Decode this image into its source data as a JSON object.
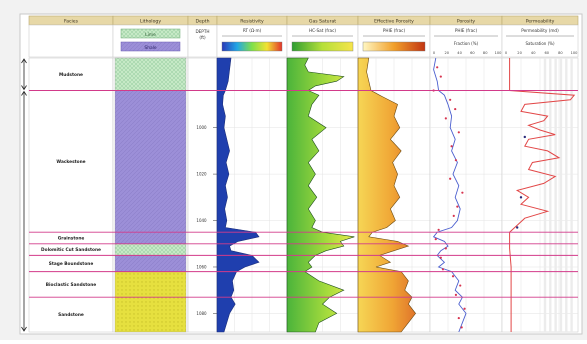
{
  "chart_data": {
    "type": "well-log",
    "columns": [
      {
        "id": "facies",
        "label": "Facies"
      },
      {
        "id": "lithology",
        "label": "Lithology"
      },
      {
        "id": "depth",
        "label": "Depth"
      },
      {
        "id": "resistivity",
        "label": "Resistivity"
      },
      {
        "id": "gas",
        "label": "Gas Saturat"
      },
      {
        "id": "effperm",
        "label": "Effective Porosity"
      },
      {
        "id": "porosity",
        "label": "Porosity"
      },
      {
        "id": "permeability",
        "label": "Permeability"
      }
    ],
    "lithology_legend": [
      "Lime",
      "Shale"
    ],
    "depth_header": [
      "DEPTH",
      "(ft)"
    ],
    "track_headers": {
      "resistivity": "RT (Ω·m)",
      "gas": "HC-Sat (frac)",
      "effperm": "PHIE (frac)",
      "porosity": {
        "title": "PHIE (frac)",
        "scale": "Fraction (%)",
        "ticks": [
          "0",
          "20",
          "40",
          "60",
          "80",
          "100"
        ]
      },
      "permeability": {
        "title": "Permeability (md)",
        "scale": "Saturation (%)",
        "ticks": [
          "0",
          "20",
          "40",
          "60",
          "80",
          "100"
        ]
      }
    },
    "depth_ticks": [
      {
        "depth": 1000,
        "label": "1000"
      },
      {
        "depth": 1020,
        "label": "1020"
      },
      {
        "depth": 1040,
        "label": "1040"
      },
      {
        "depth": 1060,
        "label": "1060"
      },
      {
        "depth": 1080,
        "label": "1080"
      }
    ],
    "depth_range": [
      970,
      1088
    ],
    "zones": [
      {
        "name": "Mudstone",
        "top": 970,
        "base": 984,
        "pattern": "green"
      },
      {
        "name": "Wackestone",
        "top": 984,
        "base": 1045,
        "pattern": "purple"
      },
      {
        "name": "Grainstone",
        "top": 1045,
        "base": 1050,
        "pattern": "purple"
      },
      {
        "name": "Dolomitic Cut Sandstone",
        "top": 1050,
        "base": 1055,
        "pattern": "green"
      },
      {
        "name": "Stage Boundstone",
        "top": 1055,
        "base": 1062,
        "pattern": "purple"
      },
      {
        "name": "Bioclastic Sandstone",
        "top": 1062,
        "base": 1073,
        "pattern": "yellow"
      },
      {
        "name": "Sandstone",
        "top": 1073,
        "base": 1088,
        "pattern": "yellow"
      }
    ],
    "curves": {
      "resistivity": [
        [
          970,
          0.2
        ],
        [
          975,
          0.18
        ],
        [
          980,
          0.16
        ],
        [
          984,
          0.12
        ],
        [
          986,
          0.09
        ],
        [
          990,
          0.08
        ],
        [
          995,
          0.12
        ],
        [
          1000,
          0.1
        ],
        [
          1005,
          0.14
        ],
        [
          1010,
          0.18
        ],
        [
          1015,
          0.13
        ],
        [
          1020,
          0.17
        ],
        [
          1025,
          0.12
        ],
        [
          1030,
          0.15
        ],
        [
          1035,
          0.11
        ],
        [
          1040,
          0.14
        ],
        [
          1043,
          0.12
        ],
        [
          1045,
          0.55
        ],
        [
          1047,
          0.6
        ],
        [
          1049,
          0.3
        ],
        [
          1051,
          0.18
        ],
        [
          1053,
          0.2
        ],
        [
          1055,
          0.5
        ],
        [
          1058,
          0.6
        ],
        [
          1060,
          0.4
        ],
        [
          1062,
          0.28
        ],
        [
          1066,
          0.22
        ],
        [
          1070,
          0.24
        ],
        [
          1073,
          0.2
        ],
        [
          1076,
          0.26
        ],
        [
          1080,
          0.18
        ],
        [
          1084,
          0.14
        ],
        [
          1088,
          0.1
        ]
      ],
      "gas": [
        [
          970,
          0.3
        ],
        [
          973,
          0.25
        ],
        [
          976,
          0.3
        ],
        [
          978,
          0.8
        ],
        [
          980,
          0.7
        ],
        [
          982,
          0.4
        ],
        [
          984,
          0.3
        ],
        [
          986,
          0.45
        ],
        [
          990,
          0.35
        ],
        [
          995,
          0.3
        ],
        [
          1000,
          0.55
        ],
        [
          1005,
          0.35
        ],
        [
          1010,
          0.45
        ],
        [
          1015,
          0.3
        ],
        [
          1020,
          0.4
        ],
        [
          1025,
          0.3
        ],
        [
          1030,
          0.42
        ],
        [
          1035,
          0.3
        ],
        [
          1040,
          0.4
        ],
        [
          1043,
          0.35
        ],
        [
          1045,
          0.5
        ],
        [
          1047,
          0.95
        ],
        [
          1049,
          0.75
        ],
        [
          1051,
          0.8
        ],
        [
          1053,
          0.55
        ],
        [
          1055,
          0.4
        ],
        [
          1058,
          0.3
        ],
        [
          1060,
          0.35
        ],
        [
          1062,
          0.25
        ],
        [
          1066,
          0.45
        ],
        [
          1070,
          0.8
        ],
        [
          1073,
          0.6
        ],
        [
          1076,
          0.5
        ],
        [
          1080,
          0.7
        ],
        [
          1084,
          0.45
        ],
        [
          1088,
          0.4
        ]
      ],
      "effperm": [
        [
          970,
          0.15
        ],
        [
          976,
          0.12
        ],
        [
          980,
          0.15
        ],
        [
          984,
          0.18
        ],
        [
          986,
          0.3
        ],
        [
          990,
          0.55
        ],
        [
          995,
          0.5
        ],
        [
          1000,
          0.58
        ],
        [
          1005,
          0.45
        ],
        [
          1010,
          0.6
        ],
        [
          1015,
          0.48
        ],
        [
          1020,
          0.55
        ],
        [
          1025,
          0.5
        ],
        [
          1030,
          0.58
        ],
        [
          1035,
          0.45
        ],
        [
          1040,
          0.52
        ],
        [
          1043,
          0.4
        ],
        [
          1045,
          0.2
        ],
        [
          1047,
          0.15
        ],
        [
          1049,
          0.55
        ],
        [
          1051,
          0.7
        ],
        [
          1053,
          0.5
        ],
        [
          1055,
          0.3
        ],
        [
          1058,
          0.45
        ],
        [
          1060,
          0.25
        ],
        [
          1062,
          0.6
        ],
        [
          1066,
          0.7
        ],
        [
          1070,
          0.65
        ],
        [
          1073,
          0.75
        ],
        [
          1076,
          0.7
        ],
        [
          1080,
          0.8
        ],
        [
          1084,
          0.7
        ],
        [
          1088,
          0.6
        ]
      ],
      "porosity_blue": [
        [
          970,
          0.08
        ],
        [
          975,
          0.05
        ],
        [
          980,
          0.1
        ],
        [
          984,
          0.12
        ],
        [
          986,
          0.2
        ],
        [
          990,
          0.25
        ],
        [
          995,
          0.3
        ],
        [
          1000,
          0.28
        ],
        [
          1005,
          0.35
        ],
        [
          1010,
          0.3
        ],
        [
          1015,
          0.38
        ],
        [
          1020,
          0.32
        ],
        [
          1025,
          0.4
        ],
        [
          1030,
          0.35
        ],
        [
          1035,
          0.42
        ],
        [
          1040,
          0.38
        ],
        [
          1043,
          0.3
        ],
        [
          1045,
          0.1
        ],
        [
          1047,
          0.05
        ],
        [
          1049,
          0.2
        ],
        [
          1051,
          0.25
        ],
        [
          1053,
          0.15
        ],
        [
          1055,
          0.1
        ],
        [
          1058,
          0.2
        ],
        [
          1060,
          0.12
        ],
        [
          1062,
          0.3
        ],
        [
          1066,
          0.4
        ],
        [
          1070,
          0.35
        ],
        [
          1073,
          0.45
        ],
        [
          1076,
          0.4
        ],
        [
          1080,
          0.5
        ],
        [
          1084,
          0.45
        ],
        [
          1088,
          0.4
        ]
      ],
      "porosity_points": [
        [
          974,
          0.1
        ],
        [
          978,
          0.15
        ],
        [
          984,
          0.05
        ],
        [
          988,
          0.28
        ],
        [
          992,
          0.35
        ],
        [
          996,
          0.22
        ],
        [
          1002,
          0.4
        ],
        [
          1008,
          0.3
        ],
        [
          1014,
          0.36
        ],
        [
          1022,
          0.28
        ],
        [
          1028,
          0.45
        ],
        [
          1034,
          0.38
        ],
        [
          1038,
          0.33
        ],
        [
          1044,
          0.12
        ],
        [
          1048,
          0.08
        ],
        [
          1052,
          0.22
        ],
        [
          1056,
          0.15
        ],
        [
          1061,
          0.18
        ],
        [
          1064,
          0.32
        ],
        [
          1068,
          0.42
        ],
        [
          1072,
          0.36
        ],
        [
          1078,
          0.48
        ],
        [
          1082,
          0.4
        ],
        [
          1086,
          0.44
        ]
      ],
      "permeability": [
        [
          970,
          0.1
        ],
        [
          980,
          0.1
        ],
        [
          984,
          0.1
        ],
        [
          986,
          0.95
        ],
        [
          988,
          0.9
        ],
        [
          990,
          0.3
        ],
        [
          993,
          0.25
        ],
        [
          995,
          0.6
        ],
        [
          997,
          0.55
        ],
        [
          999,
          0.35
        ],
        [
          1001,
          0.5
        ],
        [
          1003,
          0.7
        ],
        [
          1005,
          0.35
        ],
        [
          1008,
          0.3
        ],
        [
          1010,
          0.6
        ],
        [
          1013,
          0.75
        ],
        [
          1015,
          0.4
        ],
        [
          1018,
          0.35
        ],
        [
          1021,
          0.7
        ],
        [
          1024,
          0.55
        ],
        [
          1027,
          0.2
        ],
        [
          1030,
          0.35
        ],
        [
          1033,
          0.25
        ],
        [
          1036,
          0.6
        ],
        [
          1039,
          0.3
        ],
        [
          1042,
          0.2
        ],
        [
          1045,
          0.1
        ],
        [
          1048,
          0.1
        ],
        [
          1052,
          0.1
        ],
        [
          1060,
          0.12
        ],
        [
          1070,
          0.12
        ],
        [
          1080,
          0.12
        ],
        [
          1088,
          0.12
        ]
      ],
      "permeability_points": [
        [
          1004,
          0.3
        ],
        [
          1030,
          0.25
        ],
        [
          1043,
          0.2
        ]
      ]
    },
    "colors": {
      "header_fill": "#e7d8a7",
      "resistivity_fill": "#1f3fae",
      "gas_fill": "#7fce43",
      "effperm_fill": "#f0b232",
      "porosity_line": "#4b5fcf",
      "porosity_points": "#d7344f",
      "permeability_line": "#e24747",
      "zone_line": "#d23a8a",
      "shale_fill": "#9c8fd8",
      "lime_fill": "#bfe5c2",
      "sand_fill": "#e6e03f"
    }
  }
}
